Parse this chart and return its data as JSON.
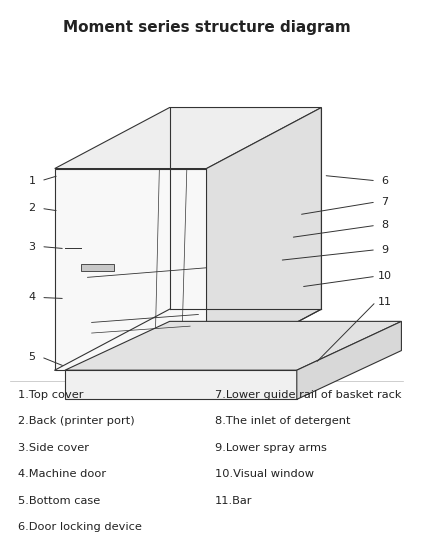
{
  "title": "Moment series structure diagram",
  "title_fontsize": 11,
  "title_fontweight": "bold",
  "bg_color": "#ffffff",
  "line_color": "#333333",
  "text_color": "#222222",
  "label_fontsize": 8.5,
  "left_items": [
    "1.Top cover",
    "2.Back (printer port)",
    "3.Side cover",
    "4.Machine door",
    "5.Bottom case",
    "6.Door locking device"
  ],
  "right_items": [
    "7.Lower guide rail of basket rack",
    "8.The inlet of detergent",
    "9.Lower spray arms",
    "10.Visual window",
    "11.Bar"
  ]
}
